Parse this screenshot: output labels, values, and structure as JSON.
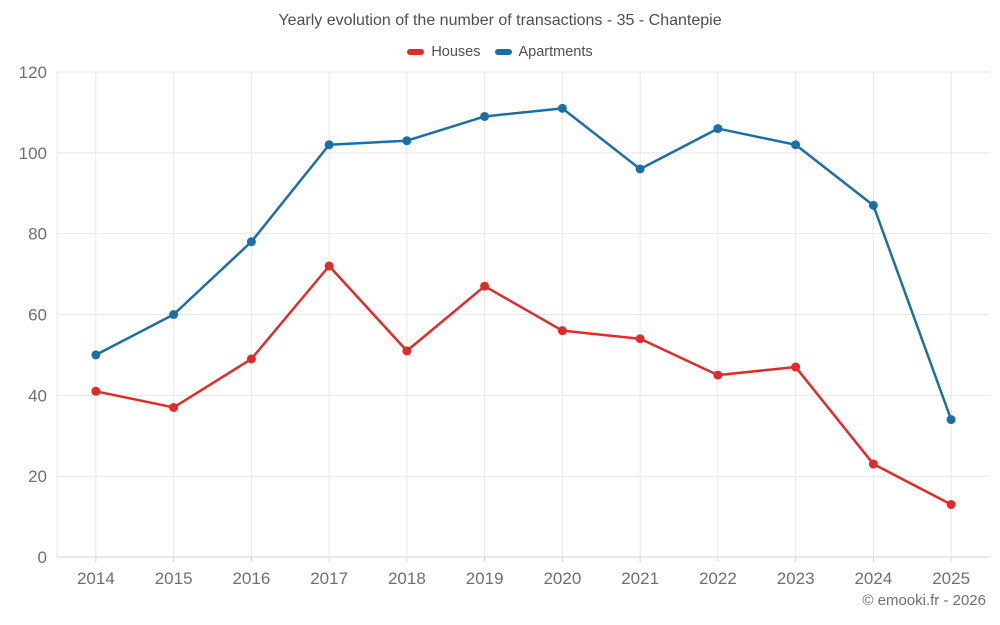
{
  "page": {
    "footer": "© emooki.fr - 2026"
  },
  "chart_data": {
    "type": "line",
    "title": "Yearly evolution of the number of transactions - 35 - Chantepie",
    "categories": [
      "2014",
      "2015",
      "2016",
      "2017",
      "2018",
      "2019",
      "2020",
      "2021",
      "2022",
      "2023",
      "2024",
      "2025"
    ],
    "series": [
      {
        "name": "Houses",
        "color": "#e02b2b",
        "values": [
          41,
          37,
          49,
          72,
          51,
          67,
          56,
          54,
          45,
          47,
          23,
          13
        ]
      },
      {
        "name": "Apartments",
        "color": "#1c6ea4",
        "values": [
          50,
          60,
          78,
          102,
          103,
          109,
          111,
          96,
          106,
          102,
          87,
          34
        ]
      }
    ],
    "xlabel": "",
    "ylabel": "",
    "ylim": [
      0,
      120
    ],
    "yticks": [
      0,
      20,
      40,
      60,
      80,
      100,
      120
    ],
    "grid": true,
    "legend_position": "top",
    "marker_radius": 4.5,
    "line_width": 2.5,
    "colors": {
      "gridline": "#e7e7e7",
      "axis_line": "#d6d6d6",
      "tick_label": "#6f6f6f",
      "title_text": "#4e4e4e"
    }
  }
}
